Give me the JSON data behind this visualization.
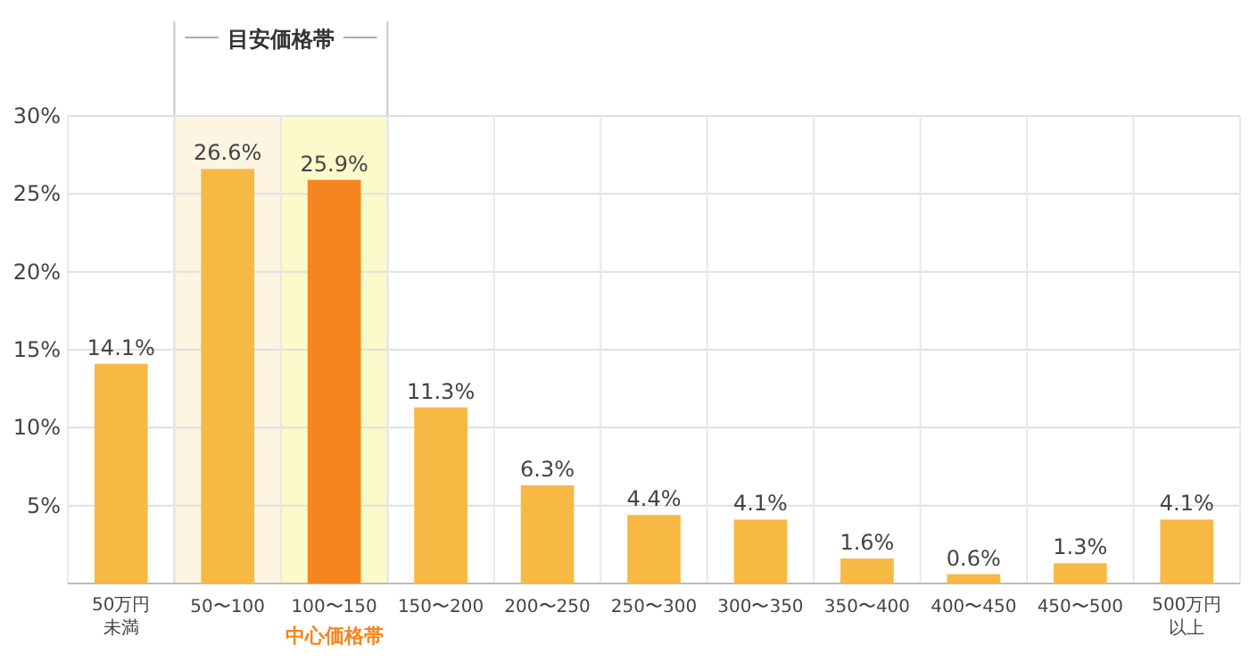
{
  "chart_data": {
    "type": "bar",
    "categories": [
      "50万円未満",
      "50〜100",
      "100〜150",
      "150〜200",
      "200〜250",
      "250〜300",
      "300〜350",
      "350〜400",
      "400〜450",
      "450〜500",
      "500万円以上"
    ],
    "values": [
      14.1,
      26.6,
      25.9,
      11.3,
      6.3,
      4.4,
      4.1,
      1.6,
      0.6,
      1.3,
      4.1
    ],
    "colors": [
      "#f7b944",
      "#f7b944",
      "#f5861f",
      "#f7b944",
      "#f7b944",
      "#f7b944",
      "#f7b944",
      "#f7b944",
      "#f7b944",
      "#f7b944",
      "#f7b944"
    ],
    "value_labels": [
      "14.1%",
      "26.6%",
      "25.9%",
      "11.3%",
      "6.3%",
      "4.4%",
      "4.1%",
      "1.6%",
      "0.6%",
      "1.3%",
      "4.1%"
    ],
    "ylim": [
      0,
      30
    ],
    "yticks": [
      {
        "value": 5,
        "label": "5%"
      },
      {
        "value": 10,
        "label": "10%"
      },
      {
        "value": 15,
        "label": "15%"
      },
      {
        "value": 20,
        "label": "20%"
      },
      {
        "value": 25,
        "label": "25%"
      },
      {
        "value": 30,
        "label": "30%"
      }
    ],
    "grid": true,
    "bands": [
      {
        "axis": "x",
        "from": "50〜100",
        "to": "100〜150",
        "label": "目安価格帯",
        "color": "#fdf5e1"
      },
      {
        "axis": "x",
        "from": "100〜150",
        "to": "100〜150",
        "label": "中心価格帯",
        "color": "#fcf9cb"
      }
    ]
  }
}
